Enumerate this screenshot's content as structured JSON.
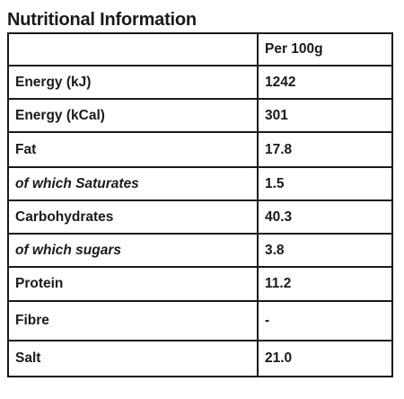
{
  "title": "Nutritional Information",
  "table": {
    "column_headers": [
      "",
      "Per 100g"
    ],
    "rows": [
      {
        "label": "Energy (kJ)",
        "value": "1242",
        "italic": false
      },
      {
        "label": "Energy (kCal)",
        "value": "301",
        "italic": false
      },
      {
        "label": "Fat",
        "value": "17.8",
        "italic": false
      },
      {
        "label": "of which Saturates",
        "value": "1.5",
        "italic": true
      },
      {
        "label": "Carbohydrates",
        "value": "40.3",
        "italic": false
      },
      {
        "label": "of which sugars",
        "value": "3.8",
        "italic": true
      },
      {
        "label": "Protein",
        "value": "11.2",
        "italic": false
      },
      {
        "label": "Fibre",
        "value": "-",
        "italic": false
      },
      {
        "label": "Salt",
        "value": "21.0",
        "italic": false
      }
    ]
  }
}
